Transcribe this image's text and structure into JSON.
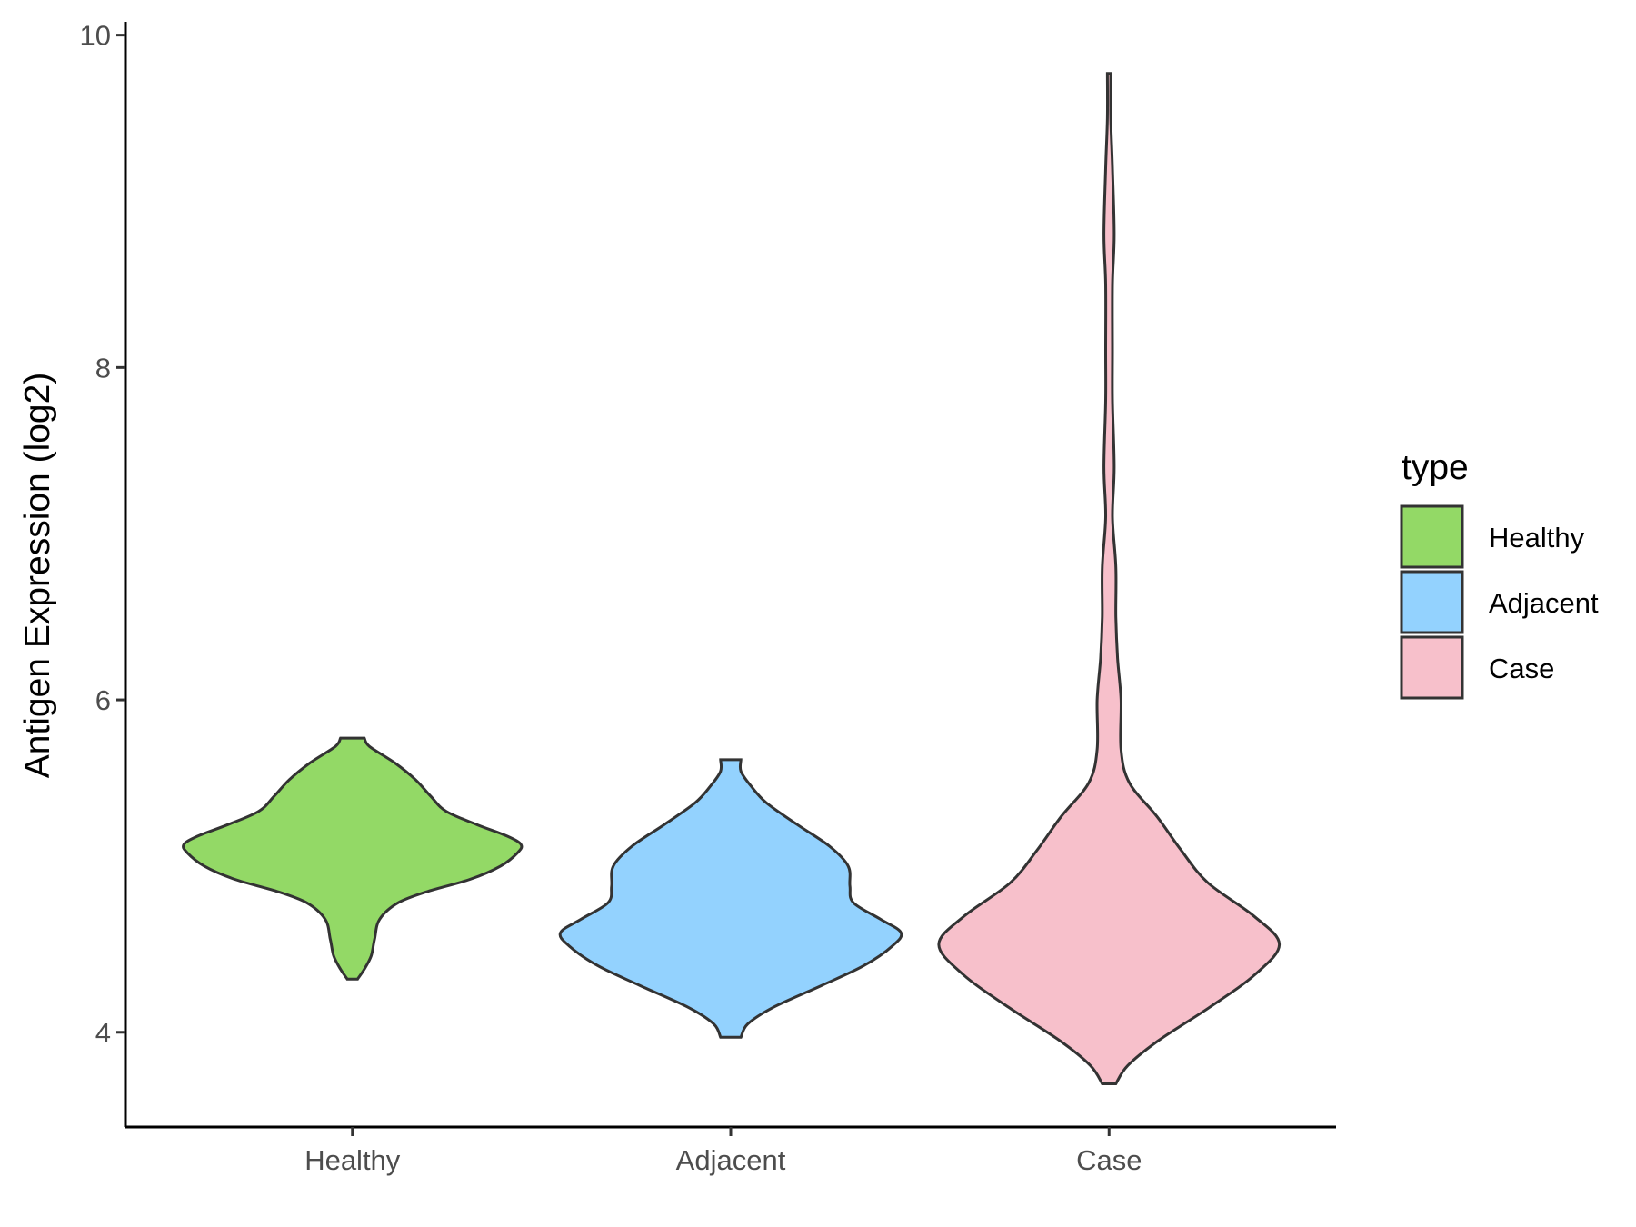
{
  "chart_data": {
    "type": "violin",
    "title": "",
    "xlabel": "",
    "ylabel": "Antigen Expression (log2)",
    "ylim": [
      3.43,
      10.08
    ],
    "yticks": [
      4,
      6,
      8,
      10
    ],
    "categories": [
      "Healthy",
      "Adjacent",
      "Case"
    ],
    "grid": false,
    "legend": {
      "title": "type",
      "placement": "right",
      "entries": [
        {
          "label": "Healthy",
          "color": "#93D966"
        },
        {
          "label": "Adjacent",
          "color": "#93D2FE"
        },
        {
          "label": "Case",
          "color": "#F7C0CB"
        }
      ]
    },
    "series": [
      {
        "category": "Healthy",
        "color": "#93D966",
        "min": 4.32,
        "max": 5.77,
        "density": [
          [
            4.32,
            0.03
          ],
          [
            4.38,
            0.07
          ],
          [
            4.46,
            0.11
          ],
          [
            4.56,
            0.13
          ],
          [
            4.68,
            0.16
          ],
          [
            4.78,
            0.27
          ],
          [
            4.85,
            0.45
          ],
          [
            4.92,
            0.69
          ],
          [
            5.0,
            0.87
          ],
          [
            5.08,
            0.97
          ],
          [
            5.13,
            0.99
          ],
          [
            5.18,
            0.91
          ],
          [
            5.25,
            0.73
          ],
          [
            5.33,
            0.55
          ],
          [
            5.42,
            0.46
          ],
          [
            5.52,
            0.37
          ],
          [
            5.62,
            0.25
          ],
          [
            5.72,
            0.1
          ],
          [
            5.77,
            0.07
          ]
        ]
      },
      {
        "category": "Adjacent",
        "color": "#93D2FE",
        "min": 3.97,
        "max": 5.64,
        "density": [
          [
            3.97,
            0.06
          ],
          [
            4.05,
            0.1
          ],
          [
            4.15,
            0.25
          ],
          [
            4.28,
            0.53
          ],
          [
            4.4,
            0.78
          ],
          [
            4.52,
            0.95
          ],
          [
            4.6,
            1.0
          ],
          [
            4.68,
            0.88
          ],
          [
            4.78,
            0.72
          ],
          [
            4.88,
            0.7
          ],
          [
            5.0,
            0.69
          ],
          [
            5.12,
            0.58
          ],
          [
            5.25,
            0.39
          ],
          [
            5.38,
            0.21
          ],
          [
            5.48,
            0.12
          ],
          [
            5.57,
            0.06
          ],
          [
            5.64,
            0.06
          ]
        ]
      },
      {
        "category": "Case",
        "color": "#F7C0CB",
        "min": 3.69,
        "max": 9.77,
        "density": [
          [
            3.69,
            0.04
          ],
          [
            3.8,
            0.11
          ],
          [
            3.95,
            0.29
          ],
          [
            4.15,
            0.59
          ],
          [
            4.35,
            0.86
          ],
          [
            4.53,
            1.0
          ],
          [
            4.7,
            0.85
          ],
          [
            4.9,
            0.58
          ],
          [
            5.1,
            0.42
          ],
          [
            5.3,
            0.28
          ],
          [
            5.5,
            0.12
          ],
          [
            5.7,
            0.07
          ],
          [
            6.0,
            0.07
          ],
          [
            6.25,
            0.05
          ],
          [
            6.5,
            0.04
          ],
          [
            6.8,
            0.04
          ],
          [
            7.1,
            0.02
          ],
          [
            7.4,
            0.03
          ],
          [
            7.8,
            0.02
          ],
          [
            8.1,
            0.02
          ],
          [
            8.5,
            0.02
          ],
          [
            8.8,
            0.03
          ],
          [
            9.2,
            0.02
          ],
          [
            9.5,
            0.01
          ],
          [
            9.77,
            0.01
          ]
        ]
      }
    ]
  }
}
